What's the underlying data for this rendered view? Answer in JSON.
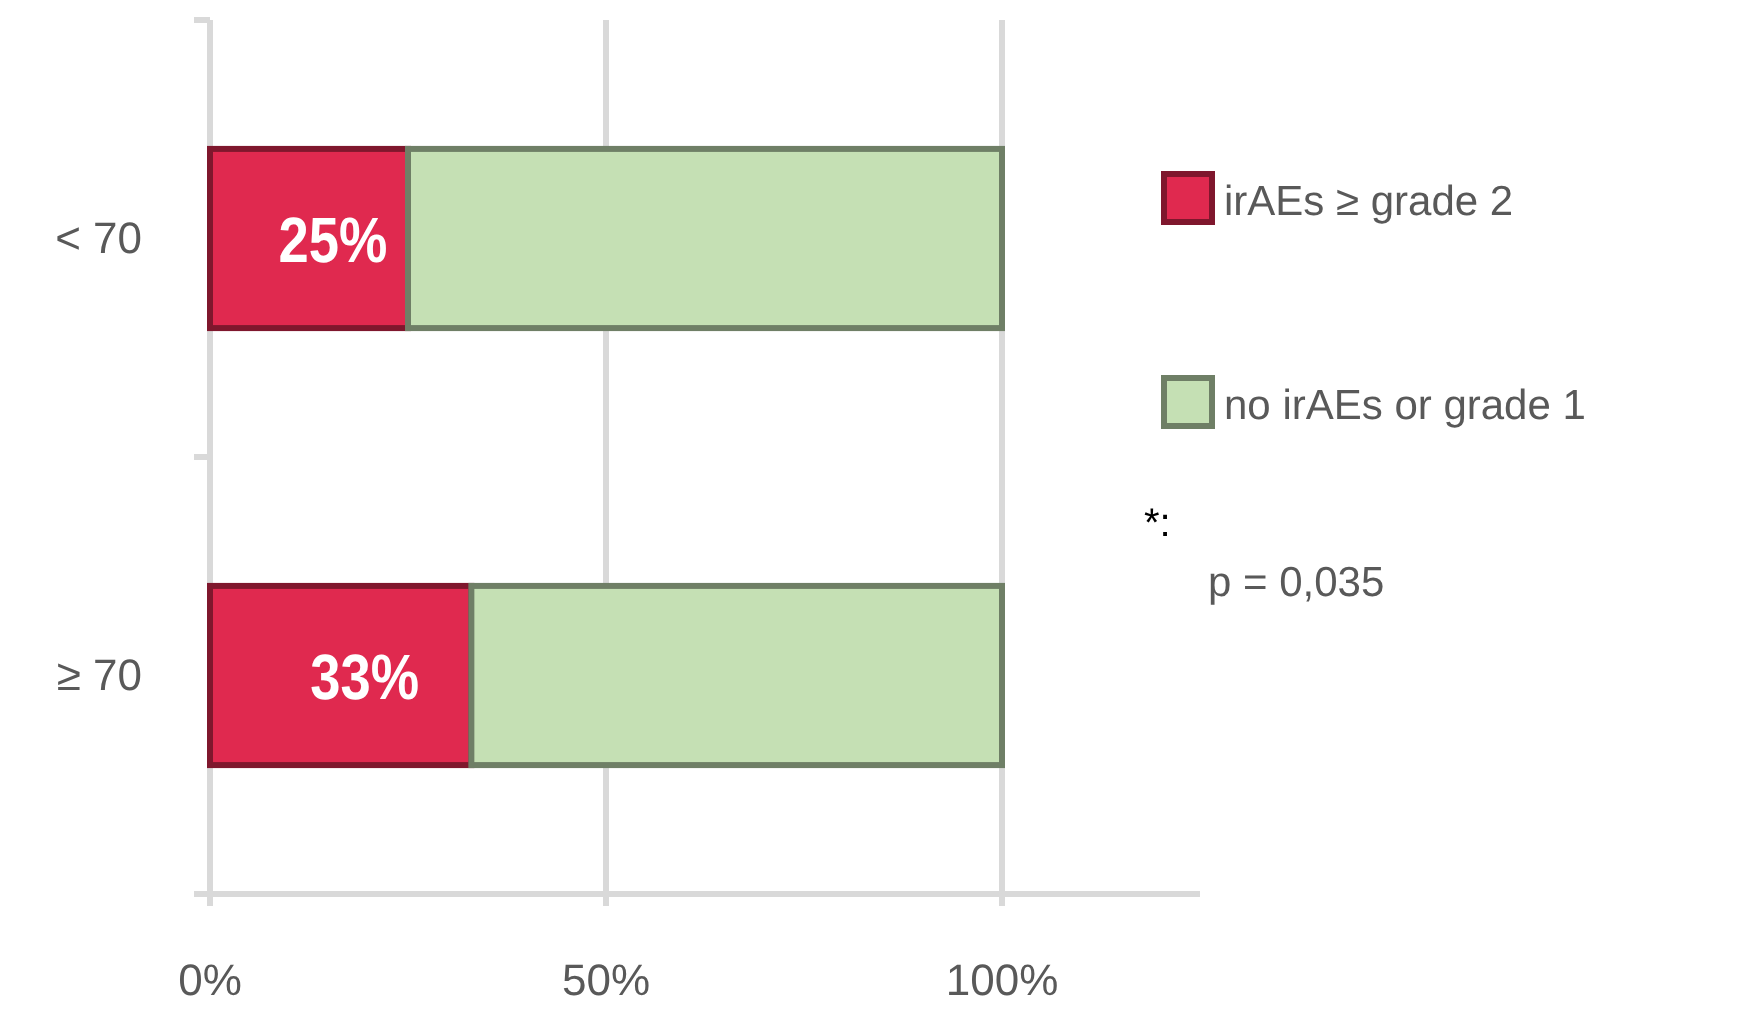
{
  "chart_data": {
    "type": "bar",
    "orientation": "horizontal",
    "stacked": true,
    "categories": [
      "< 70",
      "≥ 70"
    ],
    "series": [
      {
        "name": "irAEs ≥ grade 2",
        "color": "#e0294f",
        "values": [
          25,
          33
        ],
        "value_labels": [
          "25%",
          "33%"
        ]
      },
      {
        "name": "no irAEs or grade 1",
        "color": "#c5e0b4",
        "values": [
          75,
          67
        ]
      }
    ],
    "xlim": [
      0,
      125
    ],
    "xticks": [
      {
        "value": 0,
        "label": "0%"
      },
      {
        "value": 50,
        "label": "50%"
      },
      {
        "value": 100,
        "label": "100%"
      }
    ],
    "grid": "x",
    "legend": "right",
    "annotations": [
      "*:",
      "p = 0,035"
    ]
  }
}
